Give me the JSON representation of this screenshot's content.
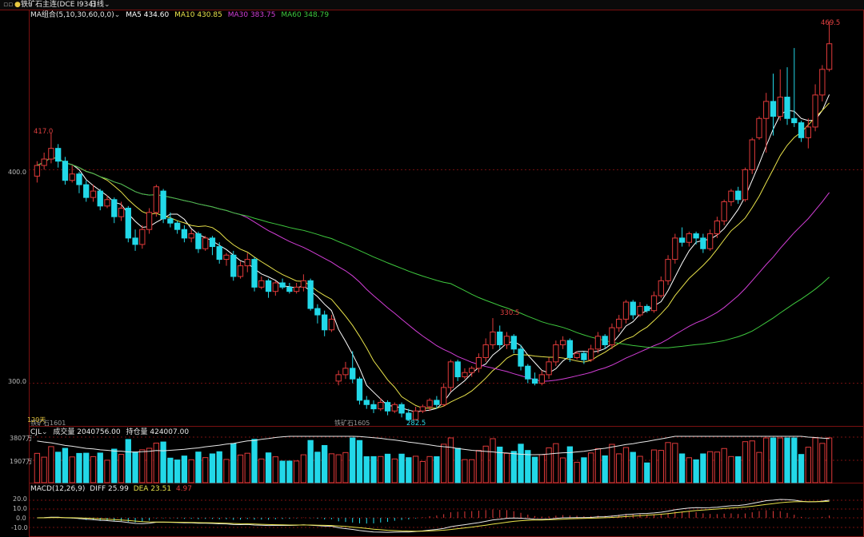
{
  "header": {
    "left_icon": "layout-icon",
    "instrument": "铁矿石主连(DCE I934)",
    "period": "日线"
  },
  "ma_legend": {
    "label": "MA组合(5,10,30,60,0,0)",
    "items": [
      {
        "text": "MA5 434.60",
        "color": "#ffffff"
      },
      {
        "text": "MA10 430.85",
        "color": "#e8e24a"
      },
      {
        "text": "MA30 383.75",
        "color": "#d23ed6"
      },
      {
        "text": "MA60 348.79",
        "color": "#3ec83e"
      }
    ]
  },
  "price_axis": {
    "ticks": [
      "400.0",
      "300.0"
    ],
    "min": 280,
    "max": 475
  },
  "annotations": {
    "high_start": "417.0",
    "mid_high": "330.5",
    "low": "282.5",
    "top_high": "469.5"
  },
  "contracts": {
    "c1": "铁矿石1601",
    "c2": "铁矿石1605",
    "note": "120天"
  },
  "volume_panel": {
    "label": "CJL",
    "volume": "成交量 2040756.00",
    "open_interest": "持仓量 424007.00",
    "ticks": [
      "3807万",
      "1907万"
    ]
  },
  "macd_panel": {
    "label": "MACD(12,26,9)",
    "diff": "DIFF 25.99",
    "dea": "DEA 23.51",
    "macd": "4.97",
    "ticks": [
      "20.0",
      "10.0",
      "0.0",
      "-10.0"
    ]
  },
  "colors": {
    "up": "#e03a3a",
    "down": "#22d8e8",
    "grid": "#7a1010",
    "ma5": "#ffffff",
    "ma10": "#e8e24a",
    "ma30": "#d23ed6",
    "ma60": "#3ec83e"
  },
  "chart_data": {
    "type": "candlestick",
    "title": "铁矿石主连(DCE I934) 日线",
    "ylim": [
      280,
      475
    ],
    "bars": [
      {
        "o": 397,
        "c": 402,
        "h": 404,
        "l": 394
      },
      {
        "o": 402,
        "c": 405,
        "h": 408,
        "l": 400
      },
      {
        "o": 405,
        "c": 410,
        "h": 417,
        "l": 403
      },
      {
        "o": 410,
        "c": 404,
        "h": 412,
        "l": 401
      },
      {
        "o": 404,
        "c": 395,
        "h": 406,
        "l": 393
      },
      {
        "o": 395,
        "c": 398,
        "h": 402,
        "l": 394
      },
      {
        "o": 398,
        "c": 393,
        "h": 399,
        "l": 389
      },
      {
        "o": 393,
        "c": 387,
        "h": 395,
        "l": 385
      },
      {
        "o": 387,
        "c": 390,
        "h": 393,
        "l": 385
      },
      {
        "o": 390,
        "c": 383,
        "h": 391,
        "l": 381
      },
      {
        "o": 383,
        "c": 386,
        "h": 388,
        "l": 382
      },
      {
        "o": 386,
        "c": 378,
        "h": 387,
        "l": 375
      },
      {
        "o": 378,
        "c": 382,
        "h": 385,
        "l": 376
      },
      {
        "o": 382,
        "c": 368,
        "h": 383,
        "l": 366
      },
      {
        "o": 368,
        "c": 365,
        "h": 372,
        "l": 362
      },
      {
        "o": 365,
        "c": 372,
        "h": 374,
        "l": 363
      },
      {
        "o": 372,
        "c": 380,
        "h": 382,
        "l": 370
      },
      {
        "o": 380,
        "c": 392,
        "h": 393,
        "l": 378
      },
      {
        "o": 390,
        "c": 377,
        "h": 391,
        "l": 375
      },
      {
        "o": 377,
        "c": 375,
        "h": 380,
        "l": 373
      },
      {
        "o": 375,
        "c": 372,
        "h": 376,
        "l": 370
      },
      {
        "o": 372,
        "c": 368,
        "h": 374,
        "l": 366
      },
      {
        "o": 368,
        "c": 370,
        "h": 372,
        "l": 366
      },
      {
        "o": 370,
        "c": 363,
        "h": 371,
        "l": 361
      },
      {
        "o": 363,
        "c": 368,
        "h": 369,
        "l": 362
      },
      {
        "o": 368,
        "c": 364,
        "h": 369,
        "l": 360
      },
      {
        "o": 364,
        "c": 358,
        "h": 366,
        "l": 356
      },
      {
        "o": 358,
        "c": 360,
        "h": 361,
        "l": 355
      },
      {
        "o": 360,
        "c": 350,
        "h": 362,
        "l": 348
      },
      {
        "o": 350,
        "c": 355,
        "h": 357,
        "l": 349
      },
      {
        "o": 355,
        "c": 358,
        "h": 361,
        "l": 352
      },
      {
        "o": 358,
        "c": 345,
        "h": 359,
        "l": 343
      },
      {
        "o": 345,
        "c": 348,
        "h": 350,
        "l": 344
      },
      {
        "o": 348,
        "c": 343,
        "h": 349,
        "l": 340
      },
      {
        "o": 343,
        "c": 347,
        "h": 348,
        "l": 341
      },
      {
        "o": 347,
        "c": 345,
        "h": 349,
        "l": 344
      },
      {
        "o": 345,
        "c": 343,
        "h": 347,
        "l": 342
      },
      {
        "o": 343,
        "c": 345,
        "h": 347,
        "l": 342
      },
      {
        "o": 345,
        "c": 348,
        "h": 351,
        "l": 343
      },
      {
        "o": 348,
        "c": 335,
        "h": 349,
        "l": 334
      },
      {
        "o": 335,
        "c": 332,
        "h": 337,
        "l": 328
      },
      {
        "o": 332,
        "c": 325,
        "h": 334,
        "l": 322
      },
      {
        "o": 325,
        "c": 330,
        "h": 332,
        "l": 324
      },
      {
        "o": 301,
        "c": 304,
        "h": 306,
        "l": 299
      },
      {
        "o": 304,
        "c": 307,
        "h": 310,
        "l": 302
      },
      {
        "o": 307,
        "c": 302,
        "h": 315,
        "l": 300
      },
      {
        "o": 302,
        "c": 292,
        "h": 303,
        "l": 290
      },
      {
        "o": 292,
        "c": 290,
        "h": 294,
        "l": 288
      },
      {
        "o": 290,
        "c": 288,
        "h": 292,
        "l": 286
      },
      {
        "o": 288,
        "c": 291,
        "h": 293,
        "l": 287
      },
      {
        "o": 291,
        "c": 287,
        "h": 292,
        "l": 285
      },
      {
        "o": 287,
        "c": 290,
        "h": 291,
        "l": 286
      },
      {
        "o": 290,
        "c": 286,
        "h": 291,
        "l": 284
      },
      {
        "o": 286,
        "c": 283,
        "h": 288,
        "l": 282.5
      },
      {
        "o": 283,
        "c": 287,
        "h": 289,
        "l": 283
      },
      {
        "o": 287,
        "c": 289,
        "h": 290,
        "l": 286
      },
      {
        "o": 289,
        "c": 292,
        "h": 293,
        "l": 287
      },
      {
        "o": 292,
        "c": 290,
        "h": 294,
        "l": 288
      },
      {
        "o": 290,
        "c": 298,
        "h": 300,
        "l": 289
      },
      {
        "o": 298,
        "c": 310,
        "h": 311,
        "l": 296
      },
      {
        "o": 310,
        "c": 303,
        "h": 311,
        "l": 301
      },
      {
        "o": 303,
        "c": 305,
        "h": 307,
        "l": 302
      },
      {
        "o": 305,
        "c": 307,
        "h": 308,
        "l": 303
      },
      {
        "o": 307,
        "c": 312,
        "h": 314,
        "l": 305
      },
      {
        "o": 312,
        "c": 318,
        "h": 321,
        "l": 310
      },
      {
        "o": 318,
        "c": 324,
        "h": 330.5,
        "l": 316
      },
      {
        "o": 324,
        "c": 318,
        "h": 327,
        "l": 316
      },
      {
        "o": 318,
        "c": 322,
        "h": 324,
        "l": 316
      },
      {
        "o": 322,
        "c": 316,
        "h": 323,
        "l": 314
      },
      {
        "o": 316,
        "c": 308,
        "h": 318,
        "l": 306
      },
      {
        "o": 308,
        "c": 302,
        "h": 309,
        "l": 300
      },
      {
        "o": 302,
        "c": 300,
        "h": 305,
        "l": 299
      },
      {
        "o": 300,
        "c": 304,
        "h": 306,
        "l": 299
      },
      {
        "o": 304,
        "c": 310,
        "h": 312,
        "l": 302
      },
      {
        "o": 310,
        "c": 318,
        "h": 320,
        "l": 308
      },
      {
        "o": 318,
        "c": 320,
        "h": 322,
        "l": 316
      },
      {
        "o": 320,
        "c": 312,
        "h": 321,
        "l": 310
      },
      {
        "o": 312,
        "c": 314,
        "h": 315,
        "l": 311
      },
      {
        "o": 314,
        "c": 311,
        "h": 315,
        "l": 309
      },
      {
        "o": 311,
        "c": 316,
        "h": 318,
        "l": 310
      },
      {
        "o": 316,
        "c": 322,
        "h": 324,
        "l": 314
      },
      {
        "o": 322,
        "c": 318,
        "h": 323,
        "l": 316
      },
      {
        "o": 318,
        "c": 326,
        "h": 328,
        "l": 316
      },
      {
        "o": 326,
        "c": 330,
        "h": 332,
        "l": 324
      },
      {
        "o": 330,
        "c": 338,
        "h": 339,
        "l": 328
      },
      {
        "o": 338,
        "c": 332,
        "h": 339,
        "l": 330
      },
      {
        "o": 332,
        "c": 336,
        "h": 338,
        "l": 331
      },
      {
        "o": 336,
        "c": 334,
        "h": 337,
        "l": 333
      },
      {
        "o": 334,
        "c": 341,
        "h": 343,
        "l": 333
      },
      {
        "o": 341,
        "c": 348,
        "h": 350,
        "l": 340
      },
      {
        "o": 348,
        "c": 358,
        "h": 360,
        "l": 346
      },
      {
        "o": 358,
        "c": 368,
        "h": 370,
        "l": 356
      },
      {
        "o": 368,
        "c": 366,
        "h": 373,
        "l": 364
      },
      {
        "o": 366,
        "c": 370,
        "h": 371,
        "l": 364
      },
      {
        "o": 370,
        "c": 368,
        "h": 371,
        "l": 365
      },
      {
        "o": 368,
        "c": 363,
        "h": 370,
        "l": 361
      },
      {
        "o": 363,
        "c": 370,
        "h": 372,
        "l": 362
      },
      {
        "o": 370,
        "c": 376,
        "h": 378,
        "l": 368
      },
      {
        "o": 376,
        "c": 385,
        "h": 386,
        "l": 374
      },
      {
        "o": 385,
        "c": 390,
        "h": 391,
        "l": 383
      },
      {
        "o": 390,
        "c": 386,
        "h": 392,
        "l": 384
      },
      {
        "o": 386,
        "c": 400,
        "h": 401,
        "l": 385
      },
      {
        "o": 400,
        "c": 414,
        "h": 415,
        "l": 398
      },
      {
        "o": 415,
        "c": 424,
        "h": 425,
        "l": 414
      },
      {
        "o": 424,
        "c": 432,
        "h": 436,
        "l": 408
      },
      {
        "o": 432,
        "c": 425,
        "h": 445,
        "l": 416
      },
      {
        "o": 425,
        "c": 434,
        "h": 447,
        "l": 423
      },
      {
        "o": 434,
        "c": 424,
        "h": 448,
        "l": 421
      },
      {
        "o": 424,
        "c": 422,
        "h": 457,
        "l": 420
      },
      {
        "o": 422,
        "c": 415,
        "h": 423,
        "l": 413
      },
      {
        "o": 415,
        "c": 420,
        "h": 424,
        "l": 410
      },
      {
        "o": 420,
        "c": 435,
        "h": 440,
        "l": 418
      },
      {
        "o": 435,
        "c": 447,
        "h": 449,
        "l": 432
      },
      {
        "o": 447,
        "c": 459,
        "h": 469.5,
        "l": 446
      }
    ]
  }
}
